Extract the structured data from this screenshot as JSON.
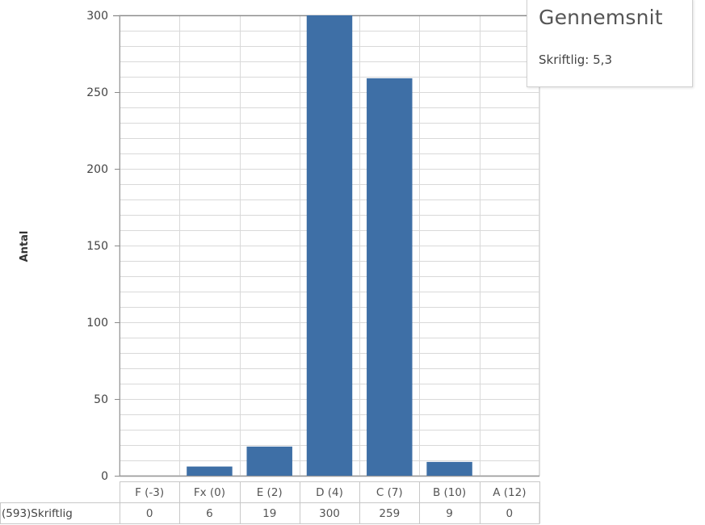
{
  "chart_data": {
    "type": "bar",
    "categories": [
      "F (-3)",
      "Fx (0)",
      "E (2)",
      "D (4)",
      "C (7)",
      "B (10)",
      "A (12)"
    ],
    "series": [
      {
        "values": [
          0,
          6,
          19,
          300,
          259,
          9,
          0
        ]
      }
    ],
    "ylabel": "Antal",
    "ylim": [
      0,
      300
    ],
    "yticks": [
      0,
      50,
      100,
      150,
      200,
      250,
      300
    ],
    "grid": true,
    "bar_color": "#3e6fa6",
    "table_row_label": "(593)Skriftlig",
    "table_values": [
      "0",
      "6",
      "19",
      "300",
      "259",
      "9",
      "0"
    ]
  },
  "average_box": {
    "title": "Gennemsnit",
    "label": "Skriftlig:",
    "value": "5,3"
  }
}
